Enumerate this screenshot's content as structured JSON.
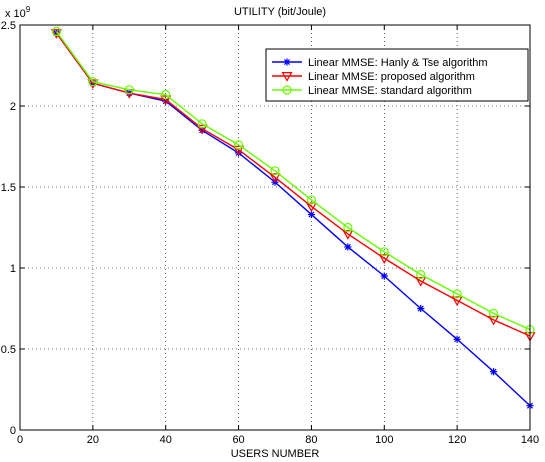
{
  "chart_data": {
    "type": "line",
    "title": "UTILITY (bit/Joule)",
    "xlabel": "USERS NUMBER",
    "ylabel": "",
    "y_multiplier_base": "x 10",
    "y_multiplier_exp": "9",
    "xlim": [
      0,
      140
    ],
    "ylim": [
      0,
      2.5
    ],
    "x_ticks": [
      0,
      20,
      40,
      60,
      80,
      100,
      120,
      140
    ],
    "y_ticks": [
      0,
      0.5,
      1,
      1.5,
      2,
      2.5
    ],
    "x_tick_labels": [
      "0",
      "20",
      "40",
      "60",
      "80",
      "100",
      "120",
      "140"
    ],
    "y_tick_labels": [
      "0",
      "0.5",
      "1",
      "1.5",
      "2",
      "2.5"
    ],
    "grid": true,
    "legend_position": "top-right",
    "x": [
      10,
      20,
      30,
      40,
      50,
      60,
      70,
      80,
      90,
      100,
      110,
      120,
      130,
      140
    ],
    "series": [
      {
        "name": "Linear MMSE: Hanly & Tse algorithm",
        "color": "#0000ff",
        "marker": "asterisk",
        "values": [
          2.45,
          2.14,
          2.08,
          2.03,
          1.85,
          1.71,
          1.53,
          1.33,
          1.13,
          0.95,
          0.75,
          0.56,
          0.36,
          0.15
        ]
      },
      {
        "name": "Linear MMSE: proposed algorithm",
        "color": "#ff0000",
        "marker": "triangle-down",
        "values": [
          2.45,
          2.14,
          2.08,
          2.04,
          1.86,
          1.73,
          1.56,
          1.38,
          1.21,
          1.06,
          0.92,
          0.8,
          0.68,
          0.58
        ]
      },
      {
        "name": "Linear MMSE: standard algorithm",
        "color": "#66ff00",
        "marker": "circle",
        "values": [
          2.46,
          2.15,
          2.1,
          2.07,
          1.89,
          1.76,
          1.6,
          1.42,
          1.25,
          1.1,
          0.96,
          0.84,
          0.72,
          0.62
        ]
      }
    ]
  }
}
